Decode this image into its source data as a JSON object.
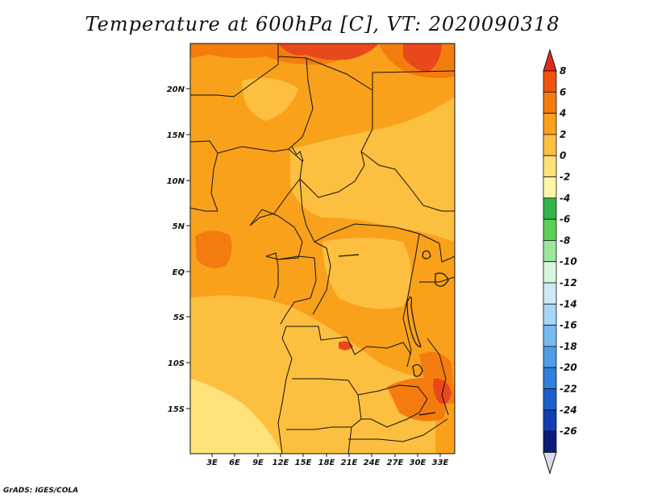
{
  "title": "Temperature at 600hPa [C], VT: 2020090318",
  "credit": "GrADS: IGES/COLA",
  "map": {
    "lon_ticks": [
      "3E",
      "6E",
      "9E",
      "12E",
      "15E",
      "18E",
      "21E",
      "24E",
      "27E",
      "30E",
      "33E"
    ],
    "lat_ticks": [
      "20N",
      "15N",
      "10N",
      "5N",
      "EQ",
      "5S",
      "10S",
      "15S"
    ],
    "fill_colors": {
      "light": "#ffe27a",
      "medium": "#fdbf3f",
      "base": "#f9a11b",
      "warm": "#f47c0e",
      "hot": "#e8481c"
    }
  },
  "colorbar": {
    "levels": [
      "8",
      "6",
      "4",
      "2",
      "0",
      "-2",
      "-4",
      "-6",
      "-8",
      "-10",
      "-12",
      "-14",
      "-16",
      "-18",
      "-20",
      "-22",
      "-24",
      "-26"
    ],
    "colors": [
      "#e32b1c",
      "#f0530f",
      "#f47c0e",
      "#f9a11b",
      "#fdbf3f",
      "#ffe27a",
      "#fff6a9",
      "#32b44a",
      "#5ccf55",
      "#9de79d",
      "#d7f6dc",
      "#cfe9f7",
      "#a6d5f5",
      "#78baf0",
      "#4f9ce8",
      "#2f7fdc",
      "#1c5fcc",
      "#0f3fb0",
      "#0b1c78",
      "#d9d9f2"
    ]
  }
}
